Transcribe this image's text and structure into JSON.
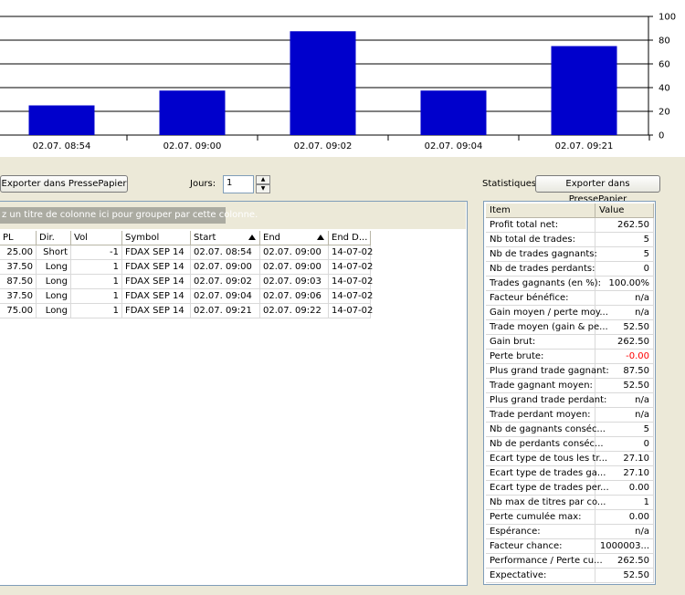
{
  "chart_data": {
    "type": "bar",
    "categories": [
      "02.07. 08:54",
      "02.07. 09:00",
      "02.07. 09:02",
      "02.07. 09:04",
      "02.07. 09:21"
    ],
    "values": [
      25,
      37.5,
      87.5,
      37.5,
      75
    ],
    "ylim": [
      0,
      100
    ],
    "yticks": [
      0,
      20,
      40,
      60,
      80,
      100
    ],
    "bar_color": "#0000CC",
    "grid": true
  },
  "toolbar": {
    "export_label": "Exporter dans PressePapier",
    "jours_label": "Jours:",
    "jours_value": "1",
    "stats_label": "Statistiques:",
    "stats_export_label": "Exporter dans PressePapier"
  },
  "grid": {
    "group_hint": "z un titre de colonne ici pour grouper par cette colonne.",
    "columns": [
      "PL",
      "Dir.",
      "Vol",
      "Symbol",
      "Start",
      "End",
      "End D..."
    ],
    "rows": [
      [
        "25.00",
        "Short",
        "-1",
        "FDAX SEP 14",
        "02.07. 08:54",
        "02.07. 09:00",
        "14-07-02"
      ],
      [
        "37.50",
        "Long",
        "1",
        "FDAX SEP 14",
        "02.07. 09:00",
        "02.07. 09:00",
        "14-07-02"
      ],
      [
        "87.50",
        "Long",
        "1",
        "FDAX SEP 14",
        "02.07. 09:02",
        "02.07. 09:03",
        "14-07-02"
      ],
      [
        "37.50",
        "Long",
        "1",
        "FDAX SEP 14",
        "02.07. 09:04",
        "02.07. 09:06",
        "14-07-02"
      ],
      [
        "75.00",
        "Long",
        "1",
        "FDAX SEP 14",
        "02.07. 09:21",
        "02.07. 09:22",
        "14-07-02"
      ]
    ]
  },
  "stats": {
    "headers": [
      "Item",
      "Value"
    ],
    "negative_color": "#FF0000",
    "rows": [
      [
        "Profit total net:",
        "262.50"
      ],
      [
        "Nb total de trades:",
        "5"
      ],
      [
        "Nb de trades gagnants:",
        "5"
      ],
      [
        "Nb de trades perdants:",
        "0"
      ],
      [
        "Trades gagnants (en %):",
        "100.00%"
      ],
      [
        "Facteur bénéfice:",
        "n/a"
      ],
      [
        "Gain moyen / perte moy...",
        "n/a"
      ],
      [
        "Trade moyen (gain & pe...",
        "52.50"
      ],
      [
        "Gain brut:",
        "262.50"
      ],
      [
        "Perte brute:",
        "-0.00"
      ],
      [
        "Plus grand trade gagnant:",
        "87.50"
      ],
      [
        "Trade gagnant moyen:",
        "52.50"
      ],
      [
        "Plus grand trade perdant:",
        "n/a"
      ],
      [
        "Trade perdant moyen:",
        "n/a"
      ],
      [
        "Nb de gagnants conséc...",
        "5"
      ],
      [
        "Nb de perdants conséc...",
        "0"
      ],
      [
        "Ecart type de tous les tr...",
        "27.10"
      ],
      [
        "Ecart type de trades ga...",
        "27.10"
      ],
      [
        "Ecart type de trades per...",
        "0.00"
      ],
      [
        "Nb max de titres par co...",
        "1"
      ],
      [
        "Perte cumulée max:",
        "0.00"
      ],
      [
        "Espérance:",
        "n/a"
      ],
      [
        "Facteur chance:",
        "1000003..."
      ],
      [
        "Performance / Perte cu...",
        "262.50"
      ],
      [
        "Expectative:",
        "52.50"
      ]
    ]
  }
}
